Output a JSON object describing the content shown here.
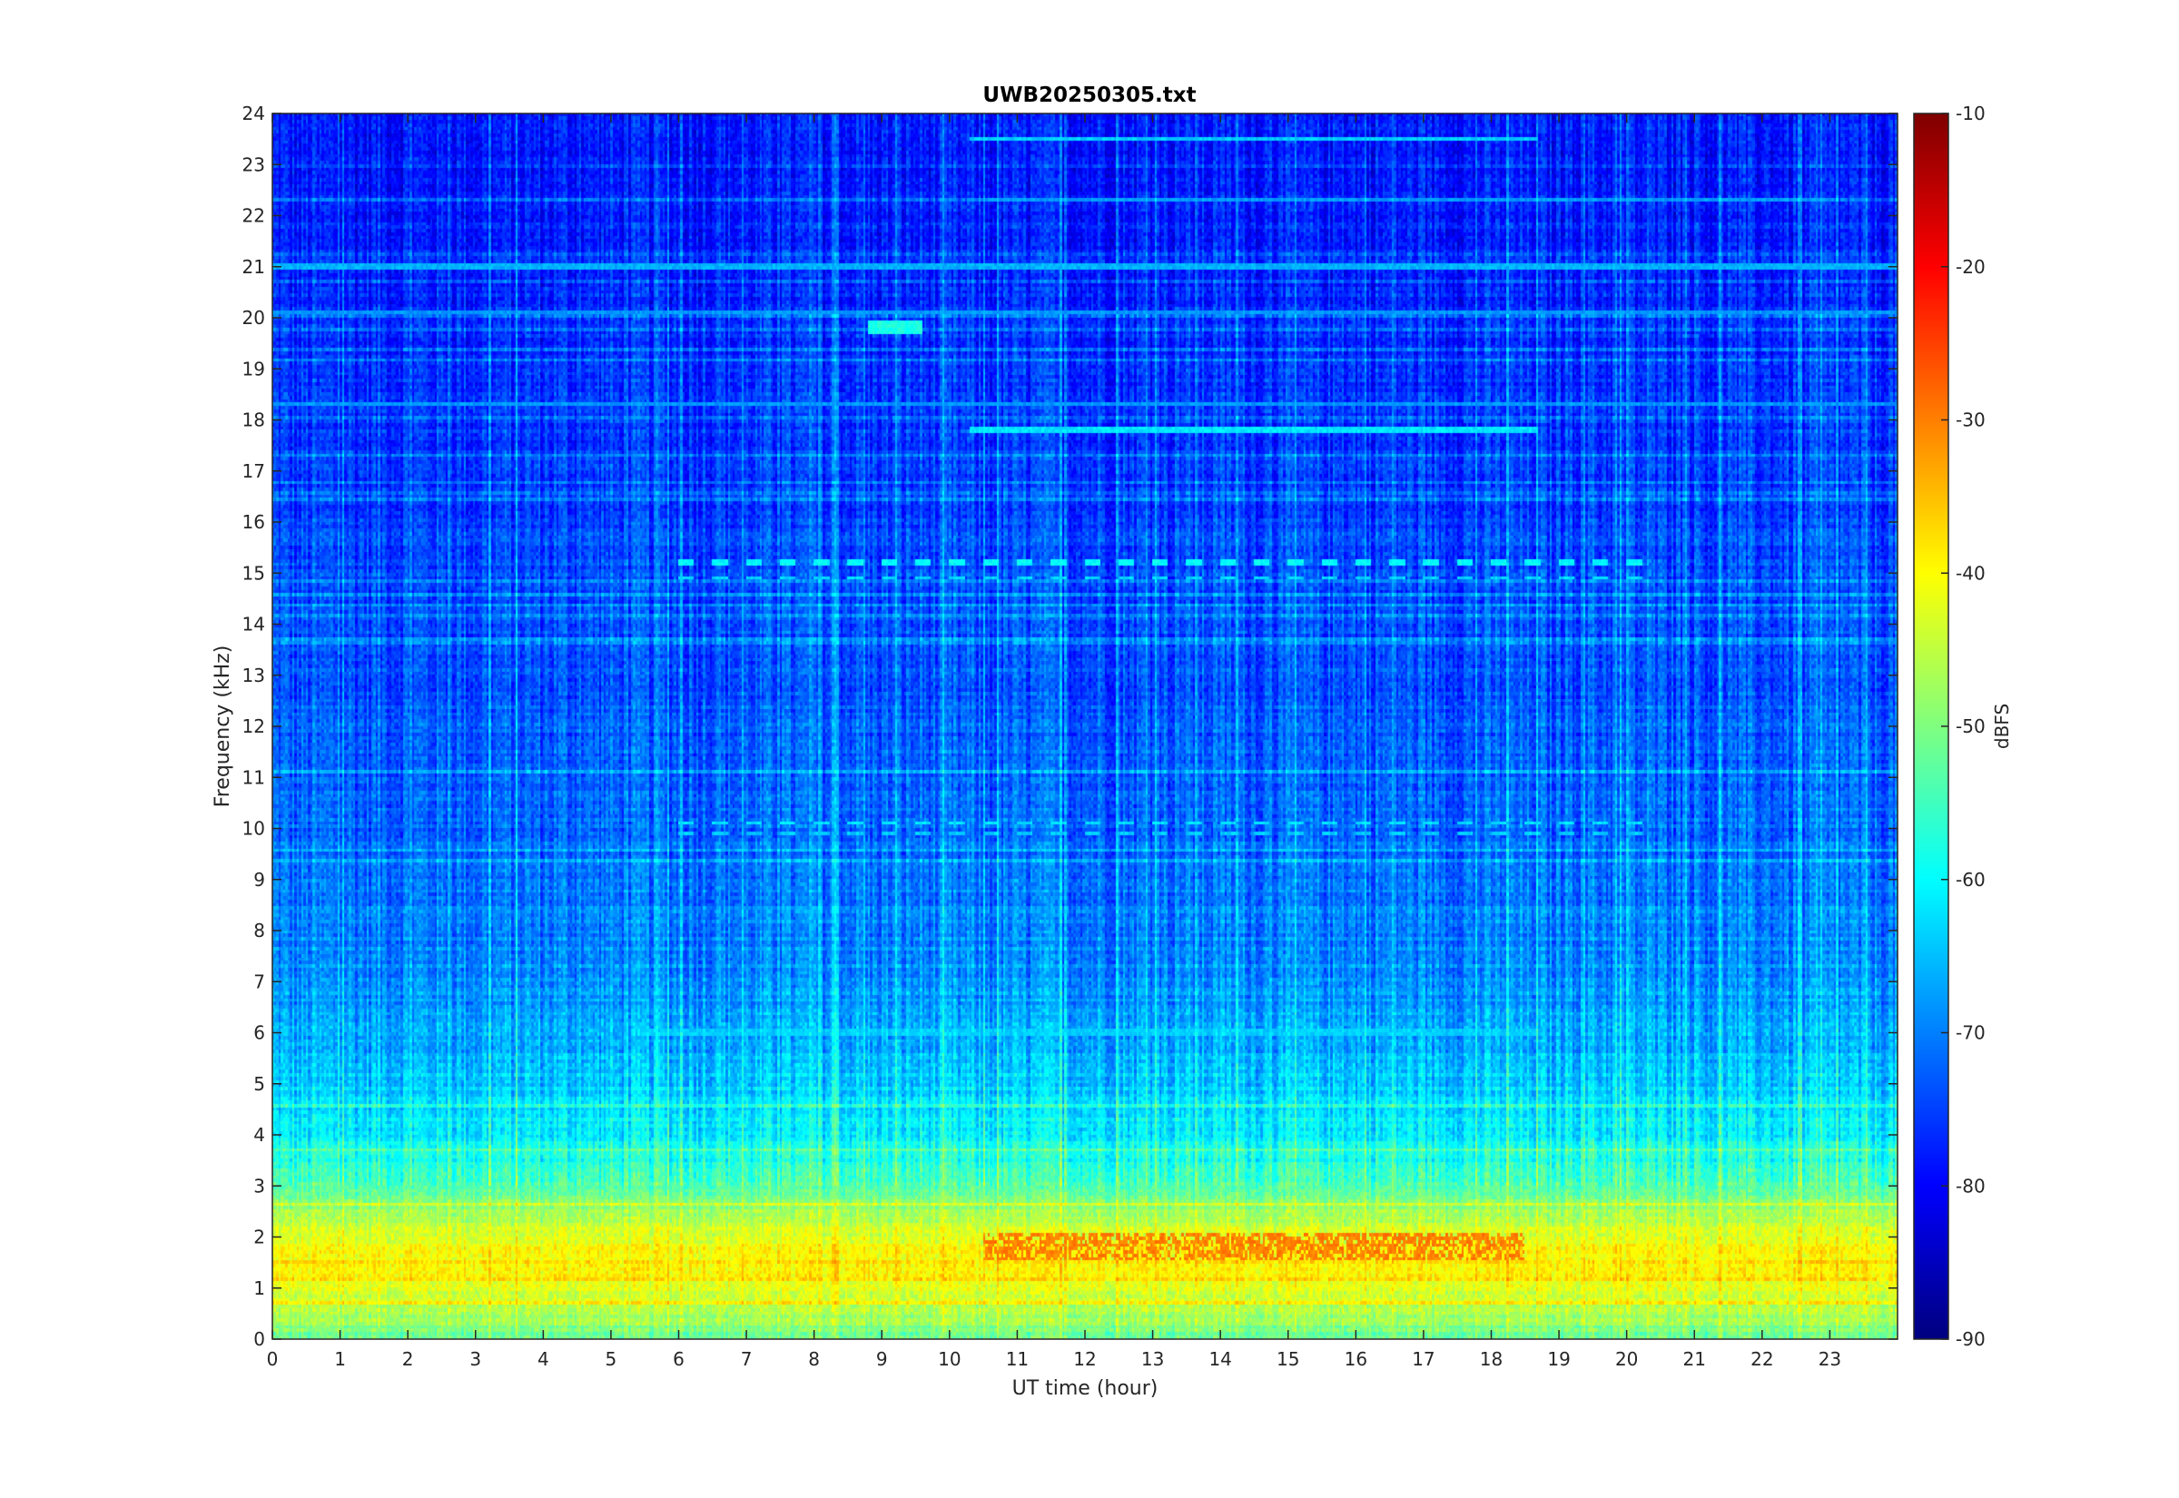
{
  "chart_data": {
    "type": "heatmap",
    "title": "UWB20250305.txt",
    "xlabel": "UT time (hour)",
    "ylabel": "Frequency (kHz)",
    "xlim": [
      0,
      24
    ],
    "ylim": [
      0,
      24
    ],
    "x_ticks": [
      "0",
      "1",
      "2",
      "3",
      "4",
      "5",
      "6",
      "7",
      "8",
      "9",
      "10",
      "11",
      "12",
      "13",
      "14",
      "15",
      "16",
      "17",
      "18",
      "19",
      "20",
      "21",
      "22",
      "23"
    ],
    "y_ticks": [
      "0",
      "1",
      "2",
      "3",
      "4",
      "5",
      "6",
      "7",
      "8",
      "9",
      "10",
      "11",
      "12",
      "13",
      "14",
      "15",
      "16",
      "17",
      "18",
      "19",
      "20",
      "21",
      "22",
      "23",
      "24"
    ],
    "colorbar": {
      "label": "dBFS",
      "range": [
        -90,
        -10
      ],
      "ticks": [
        "-10",
        "-20",
        "-30",
        "-40",
        "-50",
        "-60",
        "-70",
        "-80",
        "-90"
      ],
      "colormap": "jet"
    },
    "power_profile_by_frequency": [
      {
        "freq_khz": 0.0,
        "dbfs": -52
      },
      {
        "freq_khz": 0.5,
        "dbfs": -46
      },
      {
        "freq_khz": 1.0,
        "dbfs": -42
      },
      {
        "freq_khz": 1.5,
        "dbfs": -39
      },
      {
        "freq_khz": 2.0,
        "dbfs": -42
      },
      {
        "freq_khz": 2.5,
        "dbfs": -47
      },
      {
        "freq_khz": 3.0,
        "dbfs": -53
      },
      {
        "freq_khz": 3.5,
        "dbfs": -58
      },
      {
        "freq_khz": 4.0,
        "dbfs": -61
      },
      {
        "freq_khz": 5.0,
        "dbfs": -64
      },
      {
        "freq_khz": 6.0,
        "dbfs": -67
      },
      {
        "freq_khz": 8.0,
        "dbfs": -70
      },
      {
        "freq_khz": 10.0,
        "dbfs": -72
      },
      {
        "freq_khz": 14.0,
        "dbfs": -74
      },
      {
        "freq_khz": 18.0,
        "dbfs": -76
      },
      {
        "freq_khz": 20.0,
        "dbfs": -77
      },
      {
        "freq_khz": 24.0,
        "dbfs": -79
      }
    ],
    "features": [
      {
        "kind": "band",
        "freq_khz": 1.8,
        "t_start": 10.5,
        "t_end": 18.5,
        "dbfs": -30
      },
      {
        "kind": "line",
        "freq_khz": 17.8,
        "t_start": 10.3,
        "t_end": 18.7,
        "dbfs": -62
      },
      {
        "kind": "line",
        "freq_khz": 6.0,
        "t_start": 5.5,
        "t_end": 18.7,
        "dbfs": -64
      },
      {
        "kind": "line",
        "freq_khz": 21.0,
        "t_start": 0.0,
        "t_end": 24.0,
        "dbfs": -66
      },
      {
        "kind": "line",
        "freq_khz": 20.1,
        "t_start": 0.0,
        "t_end": 24.0,
        "dbfs": -68
      },
      {
        "kind": "line",
        "freq_khz": 18.3,
        "t_start": 0.0,
        "t_end": 24.0,
        "dbfs": -68
      },
      {
        "kind": "line",
        "freq_khz": 23.5,
        "t_start": 10.3,
        "t_end": 18.7,
        "dbfs": -64
      },
      {
        "kind": "line",
        "freq_khz": 22.3,
        "t_start": 10.5,
        "t_end": 23.0,
        "dbfs": -68
      },
      {
        "kind": "dashed",
        "freq_khz": 15.2,
        "t_start": 5.9,
        "t_end": 20.3,
        "dbfs": -60
      },
      {
        "kind": "dashed",
        "freq_khz": 14.9,
        "t_start": 5.9,
        "t_end": 20.3,
        "dbfs": -63
      },
      {
        "kind": "dashed",
        "freq_khz": 10.1,
        "t_start": 5.9,
        "t_end": 20.3,
        "dbfs": -62
      },
      {
        "kind": "dashed",
        "freq_khz": 9.9,
        "t_start": 5.9,
        "t_end": 20.3,
        "dbfs": -64
      },
      {
        "kind": "blob",
        "freq_khz": 19.8,
        "t_start": 8.8,
        "t_end": 9.6,
        "dbfs": -58
      }
    ]
  }
}
